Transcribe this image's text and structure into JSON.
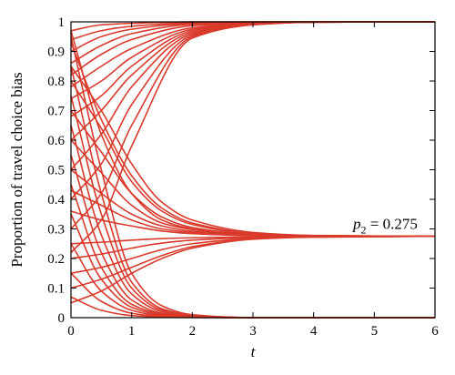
{
  "chart_data": {
    "type": "line",
    "title": "",
    "xlabel": "t",
    "ylabel": "Proportion of travel choice bias",
    "xlim": [
      0,
      6
    ],
    "ylim": [
      0,
      1
    ],
    "xticks": [
      "0",
      "1",
      "2",
      "3",
      "4",
      "5",
      "6"
    ],
    "yticks": [
      "0",
      "0.1",
      "0.2",
      "0.3",
      "0.4",
      "0.5",
      "0.6",
      "0.7",
      "0.8",
      "0.9",
      "1"
    ],
    "grid": false,
    "legend": "none",
    "line_color": "#d93a2b",
    "equilibria": [
      0,
      0.275,
      1
    ],
    "annotation": {
      "symbol": "p",
      "subscript": "2",
      "text": " = 0.275",
      "x": 4.65,
      "y": 0.3
    },
    "series": [
      {
        "x": [
          0,
          0.5,
          1,
          2,
          3,
          4,
          6
        ],
        "values": [
          0.97,
          0.99,
          0.995,
          1.0,
          1.0,
          1.0,
          1.0
        ]
      },
      {
        "x": [
          0,
          0.5,
          1,
          2,
          3,
          4,
          6
        ],
        "values": [
          0.94,
          0.97,
          0.985,
          0.997,
          1.0,
          1.0,
          1.0
        ]
      },
      {
        "x": [
          0,
          0.5,
          1,
          2,
          3,
          4,
          6
        ],
        "values": [
          0.9,
          0.95,
          0.975,
          0.995,
          0.999,
          1.0,
          1.0
        ]
      },
      {
        "x": [
          0,
          0.5,
          1,
          2,
          3,
          4,
          6
        ],
        "values": [
          0.86,
          0.92,
          0.96,
          0.992,
          0.998,
          1.0,
          1.0
        ]
      },
      {
        "x": [
          0,
          0.5,
          1,
          2,
          3,
          4,
          6
        ],
        "values": [
          0.82,
          0.89,
          0.94,
          0.987,
          0.997,
          1.0,
          1.0
        ]
      },
      {
        "x": [
          0,
          0.5,
          1,
          2,
          3,
          4,
          6
        ],
        "values": [
          0.78,
          0.85,
          0.91,
          0.98,
          0.996,
          1.0,
          1.0
        ]
      },
      {
        "x": [
          0,
          0.5,
          1,
          2,
          3,
          4,
          6
        ],
        "values": [
          0.74,
          0.8,
          0.88,
          0.975,
          0.995,
          1.0,
          1.0
        ]
      },
      {
        "x": [
          0,
          0.5,
          1,
          2,
          3,
          4,
          6
        ],
        "values": [
          0.68,
          0.75,
          0.85,
          0.97,
          0.994,
          0.999,
          1.0
        ]
      },
      {
        "x": [
          0,
          0.5,
          1,
          2,
          3,
          4,
          6
        ],
        "values": [
          0.6,
          0.7,
          0.82,
          0.965,
          0.993,
          0.999,
          1.0
        ]
      },
      {
        "x": [
          0,
          0.5,
          1,
          2,
          3,
          4,
          6
        ],
        "values": [
          0.5,
          0.62,
          0.78,
          0.96,
          0.992,
          0.999,
          1.0
        ]
      },
      {
        "x": [
          0,
          0.5,
          1,
          2,
          3,
          4,
          6
        ],
        "values": [
          0.4,
          0.52,
          0.72,
          0.955,
          0.991,
          0.999,
          1.0
        ]
      },
      {
        "x": [
          0,
          0.5,
          1,
          2,
          3,
          4,
          6
        ],
        "values": [
          0.3,
          0.42,
          0.65,
          0.95,
          0.99,
          0.999,
          1.0
        ]
      },
      {
        "x": [
          0,
          0.5,
          1,
          2,
          3,
          4,
          6
        ],
        "values": [
          0.22,
          0.33,
          0.58,
          0.945,
          0.99,
          0.999,
          1.0
        ]
      },
      {
        "x": [
          0,
          0.5,
          1,
          1.5,
          2,
          3,
          4,
          6
        ],
        "values": [
          0.97,
          0.62,
          0.42,
          0.33,
          0.3,
          0.28,
          0.276,
          0.275
        ]
      },
      {
        "x": [
          0,
          0.5,
          1,
          1.5,
          2,
          3,
          4,
          6
        ],
        "values": [
          0.93,
          0.67,
          0.48,
          0.37,
          0.32,
          0.285,
          0.277,
          0.275
        ]
      },
      {
        "x": [
          0,
          0.5,
          1,
          1.5,
          2,
          3,
          4,
          6
        ],
        "values": [
          0.85,
          0.7,
          0.52,
          0.39,
          0.33,
          0.288,
          0.278,
          0.275
        ]
      },
      {
        "x": [
          0,
          0.5,
          1,
          1.5,
          2,
          3,
          4,
          6
        ],
        "values": [
          0.8,
          0.64,
          0.46,
          0.36,
          0.315,
          0.283,
          0.277,
          0.275
        ]
      },
      {
        "x": [
          0,
          0.5,
          1,
          1.5,
          2,
          3,
          4,
          6
        ],
        "values": [
          0.7,
          0.56,
          0.42,
          0.34,
          0.305,
          0.281,
          0.276,
          0.275
        ]
      },
      {
        "x": [
          0,
          0.5,
          1,
          1.5,
          2,
          3,
          4,
          6
        ],
        "values": [
          0.6,
          0.49,
          0.38,
          0.32,
          0.298,
          0.279,
          0.276,
          0.275
        ]
      },
      {
        "x": [
          0,
          0.5,
          1,
          1.5,
          2,
          3,
          4,
          6
        ],
        "values": [
          0.5,
          0.42,
          0.35,
          0.31,
          0.292,
          0.278,
          0.276,
          0.275
        ]
      },
      {
        "x": [
          0,
          0.5,
          1,
          1.5,
          2,
          3,
          4,
          6
        ],
        "values": [
          0.43,
          0.38,
          0.33,
          0.3,
          0.288,
          0.277,
          0.275,
          0.275
        ]
      },
      {
        "x": [
          0,
          0.5,
          1,
          1.5,
          2,
          3,
          4,
          6
        ],
        "values": [
          0.36,
          0.33,
          0.31,
          0.293,
          0.284,
          0.277,
          0.275,
          0.275
        ]
      },
      {
        "x": [
          0,
          0.5,
          1,
          1.5,
          2,
          3,
          4,
          6
        ],
        "values": [
          0.25,
          0.255,
          0.262,
          0.267,
          0.27,
          0.273,
          0.275,
          0.275
        ]
      },
      {
        "x": [
          0,
          0.5,
          1,
          1.5,
          2,
          3,
          4,
          6
        ],
        "values": [
          0.2,
          0.215,
          0.235,
          0.252,
          0.262,
          0.271,
          0.274,
          0.275
        ]
      },
      {
        "x": [
          0,
          0.5,
          1,
          1.5,
          2,
          3,
          4,
          6
        ],
        "values": [
          0.15,
          0.17,
          0.2,
          0.23,
          0.25,
          0.268,
          0.273,
          0.275
        ]
      },
      {
        "x": [
          0,
          0.5,
          1,
          1.5,
          2,
          3,
          4,
          6
        ],
        "values": [
          0.1,
          0.13,
          0.17,
          0.21,
          0.24,
          0.266,
          0.273,
          0.275
        ]
      },
      {
        "x": [
          0,
          0.5,
          1,
          1.5,
          2,
          3,
          4,
          6
        ],
        "values": [
          0.05,
          0.09,
          0.15,
          0.2,
          0.235,
          0.265,
          0.272,
          0.275
        ]
      },
      {
        "x": [
          0,
          0.5,
          1,
          1.5,
          2,
          3,
          6
        ],
        "values": [
          0.95,
          0.5,
          0.15,
          0.04,
          0.01,
          0.0,
          0.0
        ]
      },
      {
        "x": [
          0,
          0.5,
          1,
          1.5,
          2,
          3,
          6
        ],
        "values": [
          0.85,
          0.42,
          0.12,
          0.03,
          0.008,
          0.0,
          0.0
        ]
      },
      {
        "x": [
          0,
          0.5,
          1,
          1.5,
          2,
          3,
          6
        ],
        "values": [
          0.75,
          0.35,
          0.1,
          0.025,
          0.006,
          0.0,
          0.0
        ]
      },
      {
        "x": [
          0,
          0.5,
          1,
          1.5,
          2,
          3,
          6
        ],
        "values": [
          0.65,
          0.28,
          0.08,
          0.02,
          0.005,
          0.0,
          0.0
        ]
      },
      {
        "x": [
          0,
          0.5,
          1,
          1.5,
          2,
          3,
          6
        ],
        "values": [
          0.55,
          0.22,
          0.06,
          0.015,
          0.004,
          0.0,
          0.0
        ]
      },
      {
        "x": [
          0,
          0.5,
          1,
          1.5,
          2,
          3,
          6
        ],
        "values": [
          0.45,
          0.17,
          0.045,
          0.012,
          0.003,
          0.0,
          0.0
        ]
      },
      {
        "x": [
          0,
          0.5,
          1,
          1.5,
          2,
          3,
          6
        ],
        "values": [
          0.35,
          0.13,
          0.035,
          0.009,
          0.002,
          0.0,
          0.0
        ]
      },
      {
        "x": [
          0,
          0.5,
          1,
          1.5,
          2,
          3,
          6
        ],
        "values": [
          0.25,
          0.09,
          0.025,
          0.006,
          0.0015,
          0.0,
          0.0
        ]
      },
      {
        "x": [
          0,
          0.5,
          1,
          1.5,
          2,
          3,
          6
        ],
        "values": [
          0.15,
          0.055,
          0.015,
          0.004,
          0.001,
          0.0,
          0.0
        ]
      },
      {
        "x": [
          0,
          0.5,
          1,
          1.5,
          2,
          3,
          6
        ],
        "values": [
          0.07,
          0.025,
          0.007,
          0.002,
          0.0005,
          0.0,
          0.0
        ]
      }
    ]
  }
}
